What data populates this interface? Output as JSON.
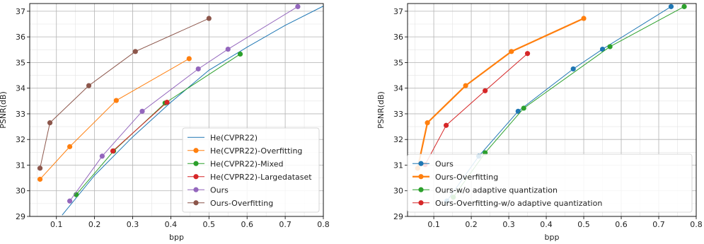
{
  "chart_data": [
    {
      "type": "line",
      "xlabel": "bpp",
      "ylabel": "PSNR(dB)",
      "xlim": [
        0.03,
        0.8
      ],
      "ylim": [
        29,
        37.3
      ],
      "xticks": [
        0.1,
        0.2,
        0.3,
        0.4,
        0.5,
        0.6,
        0.7,
        0.8
      ],
      "yticks": [
        29,
        30,
        31,
        32,
        33,
        34,
        35,
        36,
        37
      ],
      "grid": true,
      "legend_position": "lower-right",
      "series": [
        {
          "name": "He(CVPR22)",
          "color": "#1f77b4",
          "marker": false,
          "width": 1,
          "x": [
            0.115,
            0.2,
            0.3,
            0.4,
            0.5,
            0.6,
            0.7,
            0.8
          ],
          "y": [
            29.05,
            30.6,
            32.1,
            33.45,
            34.7,
            35.6,
            36.45,
            37.2
          ]
        },
        {
          "name": "He(CVPR22)-Overfitting",
          "color": "#ff7f0e",
          "marker": true,
          "width": 1,
          "x": [
            0.057,
            0.135,
            0.257,
            0.448
          ],
          "y": [
            30.45,
            31.72,
            33.52,
            35.15
          ]
        },
        {
          "name": "He(CVPR22)-Mixed",
          "color": "#2ca02c",
          "marker": true,
          "width": 1,
          "x": [
            0.152,
            0.25,
            0.385,
            0.582
          ],
          "y": [
            29.85,
            31.55,
            33.42,
            35.33
          ]
        },
        {
          "name": "He(CVPR22)-Largedataset",
          "color": "#d62728",
          "marker": true,
          "width": 1,
          "x": [
            0.248,
            0.39
          ],
          "y": [
            31.55,
            33.45
          ]
        },
        {
          "name": "Ours",
          "color": "#9467bd",
          "marker": true,
          "width": 1,
          "x": [
            0.135,
            0.22,
            0.325,
            0.472,
            0.55,
            0.733
          ],
          "y": [
            29.6,
            31.35,
            33.1,
            34.75,
            35.52,
            37.18
          ]
        },
        {
          "name": "Ours-Overfitting",
          "color": "#8c564b",
          "marker": true,
          "width": 1,
          "x": [
            0.057,
            0.083,
            0.185,
            0.307,
            0.5
          ],
          "y": [
            30.88,
            32.65,
            34.1,
            35.43,
            36.72
          ]
        }
      ]
    },
    {
      "type": "line",
      "xlabel": "bpp",
      "ylabel": "PSNR(dB)",
      "xlim": [
        0.03,
        0.8
      ],
      "ylim": [
        29,
        37.3
      ],
      "xticks": [
        0.1,
        0.2,
        0.3,
        0.4,
        0.5,
        0.6,
        0.7,
        0.8
      ],
      "yticks": [
        29,
        30,
        31,
        32,
        33,
        34,
        35,
        36,
        37
      ],
      "grid": true,
      "legend_position": "lower-right",
      "series": [
        {
          "name": "Ours",
          "color": "#1f77b4",
          "marker": true,
          "width": 1,
          "x": [
            0.135,
            0.22,
            0.325,
            0.472,
            0.55,
            0.733
          ],
          "y": [
            29.6,
            31.35,
            33.1,
            34.75,
            35.52,
            37.18
          ]
        },
        {
          "name": "Ours-Overfitting",
          "color": "#ff7f0e",
          "marker": true,
          "width": 2.2,
          "x": [
            0.057,
            0.083,
            0.185,
            0.307,
            0.5
          ],
          "y": [
            30.88,
            32.65,
            34.1,
            35.43,
            36.72
          ]
        },
        {
          "name": "Ours-w/o adaptive quantization",
          "color": "#2ca02c",
          "marker": true,
          "width": 1,
          "x": [
            0.152,
            0.237,
            0.34,
            0.57,
            0.768
          ],
          "y": [
            29.75,
            31.48,
            33.22,
            35.62,
            37.18
          ]
        },
        {
          "name": "Ours-Overfitting-w/o adaptive quantization",
          "color": "#d62728",
          "marker": true,
          "width": 1,
          "x": [
            0.077,
            0.133,
            0.237,
            0.35
          ],
          "y": [
            31.02,
            32.55,
            33.9,
            35.35
          ]
        }
      ]
    }
  ]
}
